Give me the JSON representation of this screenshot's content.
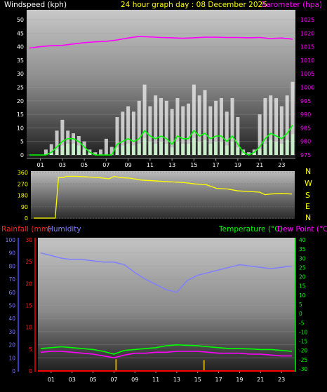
{
  "header": {
    "windspeed_label": "Windspeed (kph)",
    "graph_title": "24 hour graph day : 08 December 2025",
    "barometer_label": "Barometer (hpa)"
  },
  "compass": {
    "labels": [
      "N",
      "W",
      "S",
      "E",
      "N"
    ]
  },
  "bottom_header": {
    "rainfall_label": "Rainfall (mm)",
    "humidity_label": "Humidity",
    "temperature_label": "Temperature (°C)",
    "dewpoint_label": "Dew Point (°C)"
  },
  "colors": {
    "windspeed": "#ffffff",
    "gust_bar": "#e8e8e8",
    "wind_avg": "#00ff00",
    "wind_avg_light": "#ccffcc",
    "barometer": "#ff00ff",
    "direction": "#ffff00",
    "humidity": "#8080ff",
    "temperature": "#00ff00",
    "dewpoint": "#ff00ff",
    "rainfall": "#ff0000",
    "rain_bars": "#ccaa00",
    "title": "#ffff00"
  },
  "chart_data": [
    {
      "type": "line",
      "name": "wind-and-pressure",
      "x_ticks": [
        "01",
        "03",
        "05",
        "07",
        "09",
        "11",
        "13",
        "15",
        "17",
        "19",
        "21",
        "23"
      ],
      "y_left": {
        "title": "Windspeed (kph)",
        "range": [
          0,
          50
        ],
        "ticks": [
          0,
          5,
          10,
          15,
          20,
          25,
          30,
          35,
          40,
          45,
          50
        ]
      },
      "y_right": {
        "title": "Barometer (hpa)",
        "range": [
          975,
          1025
        ],
        "ticks": [
          975,
          980,
          985,
          990,
          995,
          1000,
          1005,
          1010,
          1015,
          1020,
          1025
        ]
      },
      "series": [
        {
          "name": "Barometer (hpa)",
          "axis": "right",
          "x": [
            0,
            1,
            2,
            3,
            4,
            5,
            6,
            7,
            8,
            9,
            10,
            11,
            12,
            13,
            14,
            15,
            16,
            17,
            18,
            19,
            20,
            21,
            22,
            23,
            24
          ],
          "y": [
            1014.5,
            1015,
            1015.4,
            1015.5,
            1016,
            1016.5,
            1016.8,
            1017,
            1017.5,
            1018.2,
            1018.8,
            1018.6,
            1018.4,
            1018.3,
            1018.1,
            1018.3,
            1018.5,
            1018.5,
            1018.4,
            1018.4,
            1018.3,
            1018.4,
            1018.0,
            1018.2,
            1017.8
          ]
        },
        {
          "name": "Wind gust",
          "axis": "left",
          "x": [
            0,
            0.5,
            1,
            1.5,
            2,
            2.5,
            3,
            3.5,
            4,
            4.5,
            5,
            5.5,
            6,
            6.5,
            7,
            7.5,
            8,
            8.5,
            9,
            9.5,
            10,
            10.5,
            11,
            11.5,
            12,
            12.5,
            13,
            13.5,
            14,
            14.5,
            15,
            15.5,
            16,
            16.5,
            17,
            17.5,
            18,
            18.5,
            19,
            19.5,
            20,
            20.5,
            21,
            21.5,
            22,
            22.5,
            23,
            23.5,
            24
          ],
          "y": [
            0,
            0,
            0,
            2,
            4,
            9,
            13,
            9,
            8,
            7,
            5,
            2,
            1,
            2,
            6,
            3,
            14,
            16,
            18,
            16,
            20,
            26,
            18,
            22,
            21,
            20,
            17,
            21,
            18,
            19,
            26,
            22,
            24,
            18,
            20,
            21,
            16,
            21,
            14,
            2,
            1,
            2,
            15,
            21,
            22,
            21,
            18,
            22,
            27
          ]
        },
        {
          "name": "Wind average",
          "axis": "left",
          "x": [
            0,
            0.5,
            1,
            1.5,
            2,
            2.5,
            3,
            3.5,
            4,
            4.5,
            5,
            5.5,
            6,
            6.5,
            7,
            7.5,
            8,
            8.5,
            9,
            9.5,
            10,
            10.5,
            11,
            11.5,
            12,
            12.5,
            13,
            13.5,
            14,
            14.5,
            15,
            15.5,
            16,
            16.5,
            17,
            17.5,
            18,
            18.5,
            19,
            19.5,
            20,
            20.5,
            21,
            21.5,
            22,
            22.5,
            23,
            23.5,
            24
          ],
          "y": [
            0,
            0,
            0,
            0,
            1,
            3,
            5,
            6,
            6,
            5,
            3,
            1,
            0,
            0,
            0,
            0,
            4,
            5,
            6,
            5,
            6,
            9,
            7,
            6,
            7,
            6,
            4,
            7,
            6,
            6,
            9,
            7,
            8,
            6,
            7,
            7,
            5,
            7,
            4,
            1,
            0,
            1,
            3,
            6,
            8,
            7,
            6,
            8,
            11
          ]
        }
      ]
    },
    {
      "type": "line",
      "name": "wind-direction",
      "y_range": [
        0,
        360
      ],
      "y_ticks": [
        0,
        90,
        180,
        270,
        360
      ],
      "series": [
        {
          "name": "Wind direction",
          "x": [
            0,
            1,
            2,
            2.3,
            2.8,
            3,
            4,
            5,
            6,
            7,
            7.5,
            8,
            9,
            10,
            11,
            12,
            13,
            14,
            15,
            16,
            16.5,
            17,
            18,
            19,
            20,
            21,
            21.5,
            22,
            23,
            24
          ],
          "y": [
            0,
            0,
            0,
            320,
            320,
            330,
            330,
            325,
            320,
            310,
            330,
            320,
            315,
            300,
            295,
            290,
            285,
            280,
            270,
            265,
            250,
            235,
            230,
            215,
            210,
            205,
            185,
            190,
            195,
            190
          ]
        }
      ]
    },
    {
      "type": "line",
      "name": "temperature-humidity-rain",
      "x_ticks": [
        "01",
        "03",
        "05",
        "07",
        "09",
        "11",
        "13",
        "15",
        "17",
        "19",
        "21",
        "23"
      ],
      "y_humidity": {
        "title": "Humidity",
        "range": [
          0,
          100
        ],
        "ticks": [
          0,
          10,
          20,
          30,
          40,
          50,
          60,
          70,
          80,
          90,
          100
        ]
      },
      "y_rain": {
        "title": "Rainfall (mm)",
        "range": [
          0,
          30
        ],
        "ticks": [
          0,
          5,
          10,
          15,
          20,
          25,
          30
        ]
      },
      "y_temp": {
        "title": "Temperature (°C)",
        "range": [
          -30,
          40
        ],
        "ticks": [
          -30,
          -25,
          -20,
          -15,
          -10,
          -5,
          0,
          5,
          10,
          15,
          20,
          25,
          30,
          35,
          40
        ]
      },
      "series": [
        {
          "name": "Humidity",
          "axis": "humidity",
          "x": [
            0,
            1,
            2,
            3,
            4,
            5,
            6,
            7,
            8,
            9,
            10,
            11,
            12,
            13,
            14,
            15,
            16,
            17,
            18,
            19,
            20,
            21,
            22,
            23,
            24
          ],
          "y": [
            90,
            88,
            86,
            85,
            85,
            84,
            83,
            83,
            81,
            75,
            70,
            66,
            62,
            60,
            69,
            73,
            75,
            77,
            79,
            81,
            80,
            79,
            78,
            79,
            80
          ]
        },
        {
          "name": "Temperature (°C)",
          "axis": "temp",
          "x": [
            0,
            1,
            2,
            3,
            4,
            5,
            6,
            7,
            8,
            9,
            10,
            11,
            12,
            13,
            14,
            15,
            16,
            17,
            18,
            19,
            20,
            21,
            22,
            23,
            24
          ],
          "y": [
            -19,
            -18.5,
            -18,
            -18.5,
            -19,
            -19.5,
            -20.5,
            -22,
            -20,
            -19.5,
            -19,
            -18.5,
            -17.5,
            -17,
            -17.2,
            -17.5,
            -18,
            -18.5,
            -19,
            -19,
            -19.2,
            -19.5,
            -19.5,
            -20,
            -20.5
          ]
        },
        {
          "name": "Dew Point (°C)",
          "axis": "temp",
          "x": [
            0,
            1,
            2,
            3,
            4,
            5,
            6,
            7,
            8,
            9,
            10,
            11,
            12,
            13,
            14,
            15,
            16,
            17,
            18,
            19,
            20,
            21,
            22,
            23,
            24
          ],
          "y": [
            -21,
            -20.5,
            -20.5,
            -21,
            -21.5,
            -22,
            -23,
            -24,
            -22.5,
            -21.5,
            -21.5,
            -21,
            -21,
            -20.5,
            -20.5,
            -20.5,
            -21,
            -21.5,
            -21.5,
            -21.5,
            -22,
            -22,
            -22.5,
            -23,
            -23
          ]
        },
        {
          "name": "Rainfall (mm)",
          "axis": "rain",
          "type": "bar",
          "x": [
            7.2,
            15.6
          ],
          "y": [
            2.7,
            2.5
          ]
        }
      ]
    }
  ]
}
